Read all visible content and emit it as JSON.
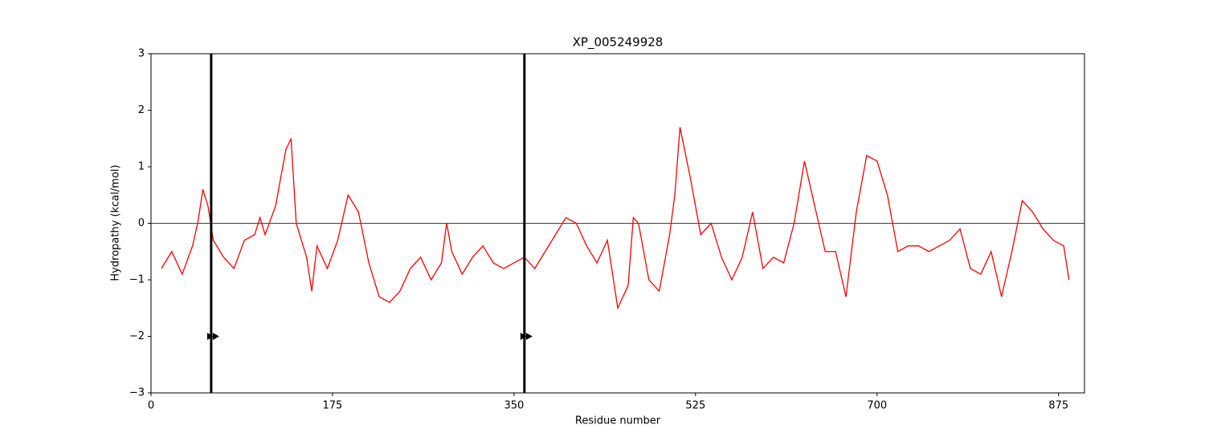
{
  "chart_data": {
    "type": "line",
    "title": "XP_005249928",
    "xlabel": "Residue number",
    "ylabel": "Hydropathy (kcal/mol)",
    "xlim": [
      0,
      900
    ],
    "ylim": [
      -3,
      3
    ],
    "xticks": [
      0,
      175,
      350,
      525,
      700,
      875
    ],
    "yticks": [
      {
        "value": -3,
        "label": "−3"
      },
      {
        "value": -2,
        "label": "−2"
      },
      {
        "value": -1,
        "label": "−1"
      },
      0,
      1,
      2,
      3
    ],
    "hline": 0,
    "hline_color": "#000000",
    "vlines": [
      58,
      360
    ],
    "vline_color": "#000000",
    "marker_y": -2,
    "series": [
      {
        "color": "#ff0000",
        "x": [
          10,
          20,
          30,
          40,
          45,
          50,
          55,
          60,
          70,
          80,
          90,
          100,
          105,
          110,
          120,
          130,
          135,
          140,
          150,
          155,
          160,
          170,
          180,
          190,
          200,
          210,
          220,
          230,
          240,
          250,
          260,
          270,
          280,
          285,
          290,
          300,
          310,
          320,
          330,
          340,
          350,
          360,
          370,
          380,
          390,
          400,
          410,
          420,
          430,
          440,
          450,
          460,
          465,
          470,
          480,
          490,
          500,
          505,
          510,
          520,
          530,
          540,
          550,
          560,
          570,
          580,
          590,
          600,
          610,
          620,
          630,
          640,
          650,
          660,
          670,
          680,
          690,
          700,
          710,
          720,
          730,
          740,
          750,
          760,
          770,
          780,
          790,
          800,
          810,
          820,
          830,
          840,
          850,
          860,
          870,
          880,
          885
        ],
        "values": [
          -0.8,
          -0.5,
          -0.9,
          -0.4,
          0.0,
          0.6,
          0.3,
          -0.3,
          -0.6,
          -0.8,
          -0.3,
          -0.2,
          0.1,
          -0.2,
          0.3,
          1.3,
          1.5,
          0.0,
          -0.6,
          -1.2,
          -0.4,
          -0.8,
          -0.3,
          0.5,
          0.2,
          -0.7,
          -1.3,
          -1.4,
          -1.2,
          -0.8,
          -0.6,
          -1.0,
          -0.7,
          0.0,
          -0.5,
          -0.9,
          -0.6,
          -0.4,
          -0.7,
          -0.8,
          -0.7,
          -0.6,
          -0.8,
          -0.5,
          -0.2,
          0.1,
          0.0,
          -0.4,
          -0.7,
          -0.3,
          -1.5,
          -1.1,
          0.1,
          0.0,
          -1.0,
          -1.2,
          -0.2,
          0.5,
          1.7,
          0.8,
          -0.2,
          0.0,
          -0.6,
          -1.0,
          -0.6,
          0.2,
          -0.8,
          -0.6,
          -0.7,
          0.0,
          1.1,
          0.3,
          -0.5,
          -0.5,
          -1.3,
          0.2,
          1.2,
          1.1,
          0.5,
          -0.5,
          -0.4,
          -0.4,
          -0.5,
          -0.4,
          -0.3,
          -0.1,
          -0.8,
          -0.9,
          -0.5,
          -1.3,
          -0.5,
          0.4,
          0.2,
          -0.1,
          -0.3,
          -0.4,
          -1.0
        ]
      }
    ]
  }
}
